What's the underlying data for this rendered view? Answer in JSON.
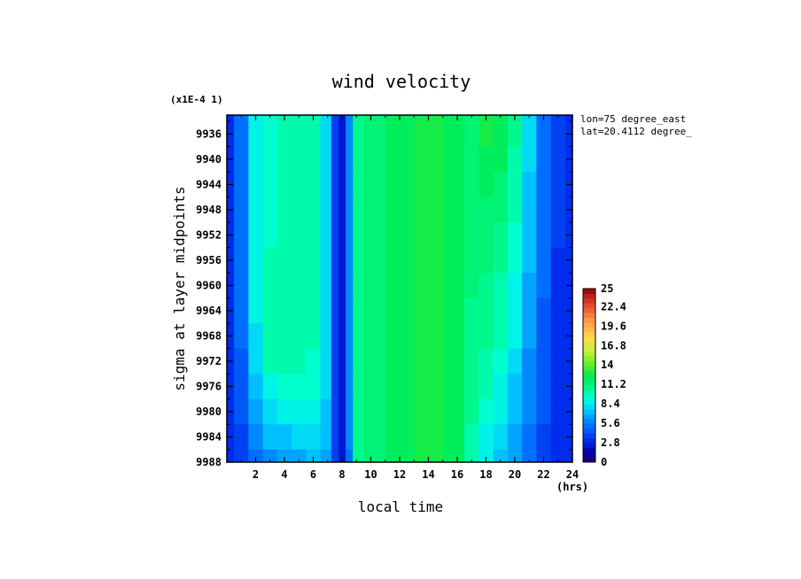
{
  "chart_data": {
    "type": "heatmap",
    "title": "wind velocity",
    "scale_note": "(x1E-4 1)",
    "xlabel": "local time",
    "x_unit": "(hrs)",
    "ylabel": "sigma at layer midpoints",
    "annotations": [
      "lon=75 degree_east",
      "lat=20.4112 degree_"
    ],
    "xlim": [
      0,
      24
    ],
    "ylim": [
      9988,
      9933
    ],
    "x_ticks": [
      "2",
      "4",
      "6",
      "8",
      "10",
      "12",
      "14",
      "16",
      "18",
      "20",
      "22",
      "24"
    ],
    "y_ticks": [
      "9936",
      "9940",
      "9944",
      "9948",
      "9952",
      "9956",
      "9960",
      "9964",
      "9968",
      "9972",
      "9976",
      "9980",
      "9984",
      "9988"
    ],
    "colorbar": {
      "min": 0,
      "max": 25,
      "tick_labels": [
        "25",
        "22.4",
        "19.6",
        "16.8",
        "14",
        "11.2",
        "8.4",
        "5.6",
        "2.8",
        "0"
      ]
    },
    "x": [
      0,
      1,
      2,
      3,
      4,
      5,
      6,
      7,
      7.5,
      8,
      8.5,
      9,
      10,
      12,
      14,
      16,
      17,
      18,
      19,
      20,
      21,
      22,
      23,
      24
    ],
    "y": [
      9936,
      9940,
      9944,
      9948,
      9952,
      9956,
      9960,
      9964,
      9968,
      9972,
      9976,
      9980,
      9984,
      9988
    ],
    "values": [
      [
        3.0,
        5.0,
        8.5,
        9.5,
        9.8,
        10.0,
        9.8,
        8.0,
        4.0,
        2.5,
        6.0,
        11.0,
        11.8,
        12.2,
        12.5,
        12.0,
        11.8,
        12.6,
        12.4,
        10.5,
        8.0,
        5.5,
        3.5,
        3.0
      ],
      [
        3.0,
        5.0,
        8.5,
        9.5,
        9.8,
        10.0,
        9.8,
        8.0,
        4.0,
        2.5,
        6.0,
        11.0,
        11.8,
        12.2,
        12.5,
        12.0,
        11.8,
        12.3,
        12.0,
        10.2,
        7.8,
        5.4,
        3.5,
        3.0
      ],
      [
        3.0,
        5.0,
        8.5,
        9.6,
        9.9,
        10.0,
        9.8,
        8.0,
        4.0,
        2.5,
        6.0,
        11.0,
        11.8,
        12.2,
        12.5,
        12.0,
        11.6,
        12.0,
        11.6,
        10.0,
        7.6,
        5.3,
        3.5,
        3.0
      ],
      [
        3.0,
        5.0,
        8.5,
        9.6,
        9.9,
        10.0,
        9.8,
        8.0,
        4.0,
        2.5,
        6.0,
        11.0,
        11.8,
        12.2,
        12.5,
        12.0,
        11.5,
        11.8,
        11.3,
        9.8,
        7.4,
        5.2,
        3.5,
        3.0
      ],
      [
        3.0,
        5.0,
        8.6,
        9.7,
        10.0,
        10.1,
        9.9,
        8.0,
        4.0,
        2.5,
        6.0,
        11.0,
        11.8,
        12.2,
        12.5,
        12.0,
        11.4,
        11.5,
        11.0,
        9.5,
        7.2,
        5.1,
        3.5,
        3.0
      ],
      [
        3.0,
        5.0,
        8.6,
        9.8,
        10.1,
        10.1,
        9.9,
        8.0,
        4.0,
        2.5,
        6.0,
        11.0,
        11.8,
        12.2,
        12.5,
        12.0,
        11.3,
        11.3,
        10.7,
        9.2,
        7.0,
        5.0,
        3.4,
        3.0
      ],
      [
        3.0,
        5.0,
        8.6,
        9.9,
        10.2,
        10.1,
        9.9,
        8.0,
        4.0,
        2.5,
        6.0,
        11.0,
        11.8,
        12.2,
        12.6,
        12.0,
        11.2,
        11.0,
        10.4,
        9.0,
        6.8,
        4.9,
        3.4,
        3.0
      ],
      [
        3.0,
        5.0,
        8.5,
        10.0,
        10.3,
        10.1,
        9.8,
        8.0,
        4.0,
        2.5,
        6.0,
        11.0,
        11.8,
        12.3,
        12.7,
        12.1,
        11.1,
        10.8,
        10.1,
        8.7,
        6.6,
        4.8,
        3.4,
        3.0
      ],
      [
        3.0,
        4.9,
        8.3,
        10.1,
        10.4,
        10.1,
        9.8,
        8.0,
        4.0,
        2.5,
        6.0,
        11.0,
        11.8,
        12.3,
        12.8,
        12.2,
        11.0,
        10.5,
        9.8,
        8.4,
        6.4,
        4.7,
        3.3,
        3.0
      ],
      [
        3.0,
        4.8,
        8.0,
        9.8,
        10.1,
        9.9,
        9.6,
        7.9,
        4.0,
        2.5,
        6.0,
        11.0,
        11.8,
        12.4,
        12.9,
        12.2,
        10.9,
        10.2,
        9.4,
        8.0,
        6.2,
        4.6,
        3.3,
        3.0
      ],
      [
        3.0,
        4.6,
        7.5,
        9.0,
        9.3,
        9.3,
        9.2,
        7.8,
        4.0,
        2.5,
        6.0,
        11.0,
        11.8,
        12.4,
        13.0,
        12.3,
        10.8,
        9.9,
        9.0,
        7.6,
        6.0,
        4.5,
        3.3,
        3.0
      ],
      [
        3.0,
        4.4,
        6.8,
        8.2,
        8.5,
        8.6,
        8.7,
        7.6,
        4.0,
        2.5,
        6.0,
        11.0,
        11.8,
        12.4,
        13.1,
        12.3,
        10.6,
        9.5,
        8.5,
        7.2,
        5.7,
        4.3,
        3.2,
        3.0
      ],
      [
        3.0,
        4.1,
        6.0,
        7.2,
        7.6,
        7.8,
        8.0,
        7.2,
        3.9,
        2.5,
        5.8,
        10.8,
        11.7,
        12.4,
        13.1,
        12.3,
        10.4,
        9.0,
        8.0,
        6.8,
        5.4,
        4.1,
        3.1,
        3.0
      ],
      [
        2.8,
        3.6,
        5.0,
        6.0,
        6.4,
        6.7,
        7.0,
        6.6,
        3.8,
        2.4,
        5.5,
        10.5,
        11.5,
        12.3,
        13.0,
        12.2,
        10.2,
        8.6,
        7.5,
        6.3,
        5.0,
        3.8,
        3.0,
        2.8
      ]
    ]
  }
}
